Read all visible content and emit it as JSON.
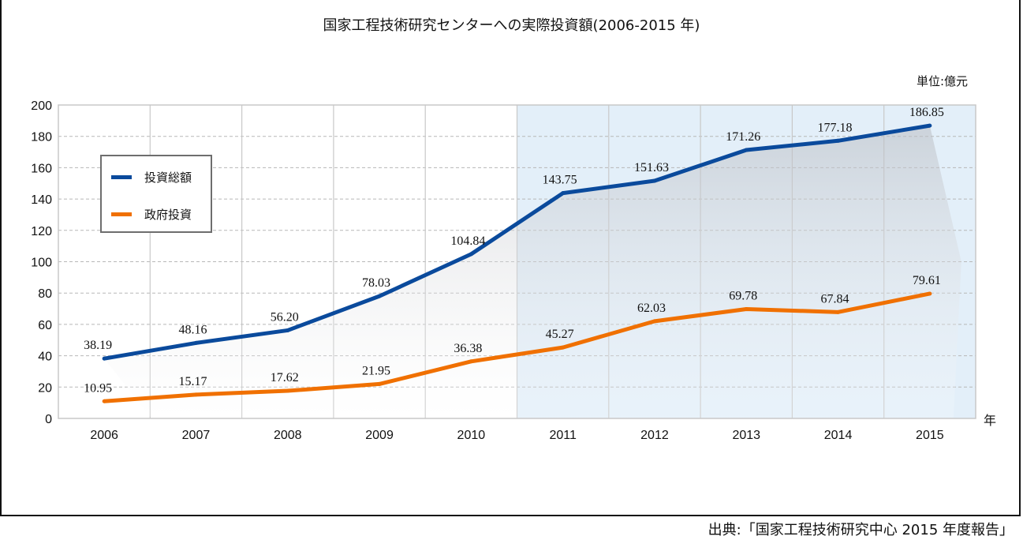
{
  "chart_data": {
    "type": "line",
    "title": "国家工程技術研究センターへの実際投資額(2006-2015 年)",
    "unit_label": "単位:億元",
    "xlabel": "年",
    "ylabel": "",
    "categories": [
      "2006",
      "2007",
      "2008",
      "2009",
      "2010",
      "2011",
      "2012",
      "2013",
      "2014",
      "2015"
    ],
    "yticks": [
      "0",
      "20",
      "40",
      "60",
      "80",
      "100",
      "120",
      "140",
      "160",
      "180",
      "200"
    ],
    "ylim": [
      0,
      200
    ],
    "grid": true,
    "legend_position": "top-left",
    "highlight_range": [
      "2011",
      "2015"
    ],
    "series": [
      {
        "name": "投資総額",
        "color": "#0a4a9c",
        "values": [
          38.19,
          48.16,
          56.2,
          78.03,
          104.84,
          143.75,
          151.63,
          171.26,
          177.18,
          186.85
        ],
        "labels": [
          "38.19",
          "48.16",
          "56.20",
          "78.03",
          "104.84",
          "143.75",
          "151.63",
          "171.26",
          "177.18",
          "186.85"
        ]
      },
      {
        "name": "政府投資",
        "color": "#f07000",
        "values": [
          10.95,
          15.17,
          17.62,
          21.95,
          36.38,
          45.27,
          62.03,
          69.78,
          67.84,
          79.61
        ],
        "labels": [
          "10.95",
          "15.17",
          "17.62",
          "21.95",
          "36.38",
          "45.27",
          "62.03",
          "69.78",
          "67.84",
          "79.61"
        ]
      }
    ],
    "source": "出典:「国家工程技術研究中心 2015 年度報告」"
  }
}
